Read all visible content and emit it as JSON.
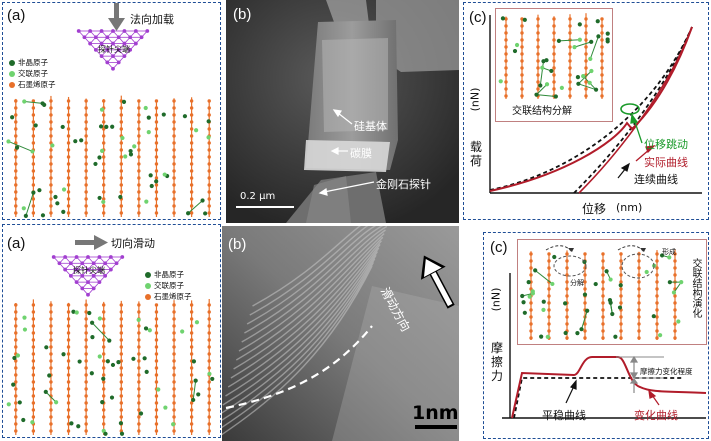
{
  "top": {
    "a": {
      "label": "(a)",
      "load_text": "法向加载",
      "tip_text": "探针尖端",
      "legend": [
        "非晶原子",
        "交联原子",
        "石墨烯原子"
      ]
    },
    "b": {
      "label": "(b)",
      "annotations": [
        "硅基体",
        "碳膜",
        "金刚石探针"
      ],
      "scale": "0.2 μm"
    },
    "c": {
      "label": "(c)",
      "inset_caption": "交联结构分解",
      "ylabel": "载荷",
      "yunit": "(nN)",
      "xlabel": "位移",
      "xunit": "(nm)",
      "annotations": [
        "位移跳动",
        "实际曲线",
        "连续曲线"
      ]
    }
  },
  "bottom": {
    "a": {
      "label": "(a)",
      "slide_text": "切向滑动",
      "tip_text": "探针尖端",
      "legend": [
        "非晶原子",
        "交联原子",
        "石墨烯原子"
      ]
    },
    "b": {
      "label": "(b)",
      "direction": "滑动方向",
      "scale": "1nm"
    },
    "c": {
      "label": "(c)",
      "inset_left": "分解",
      "inset_right": "形成",
      "inset_caption": "交联结构演化",
      "ylabel": "摩擦力",
      "yunit": "(nN)",
      "annotations": [
        "摩擦力变化程度",
        "平稳曲线",
        "变化曲线"
      ]
    }
  },
  "colors": {
    "border": "#1f4e96",
    "amorphous": "#1f6b2a",
    "crosslink": "#6fd36f",
    "graphene": "#e8702a",
    "tip": "#a23fd0",
    "curve": "#b11c2a",
    "green_anno": "#1a9a2a"
  }
}
